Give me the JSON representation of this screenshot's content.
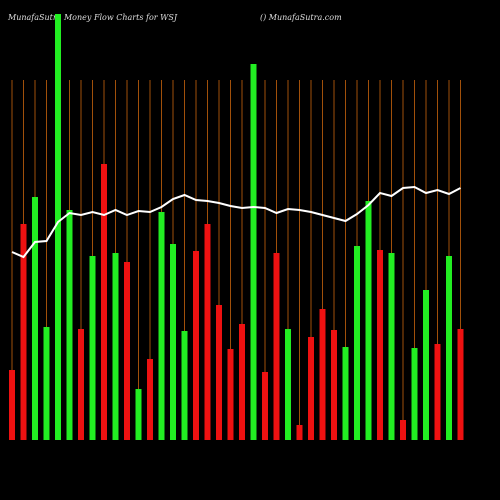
{
  "chart_data": {
    "type": "bar",
    "title": "MunafaSutra  Money Flow  Charts for WSJ",
    "subtitle": "() MunafaSutra.com",
    "series": [
      {
        "name": null,
        "values": [
          70,
          216,
          243,
          113,
          426,
          230,
          111,
          184,
          276,
          187,
          178,
          51,
          81,
          228,
          196,
          109,
          189,
          216,
          135,
          91,
          116,
          376,
          68,
          187,
          111,
          15,
          103,
          131,
          110,
          93,
          194,
          239,
          190,
          187,
          20,
          92,
          150,
          96,
          184,
          111
        ],
        "colors": [
          "red",
          "red",
          "green",
          "green",
          "green",
          "green",
          "red",
          "green",
          "red",
          "green",
          "red",
          "green",
          "red",
          "green",
          "green",
          "green",
          "red",
          "red",
          "red",
          "red",
          "red",
          "green",
          "red",
          "red",
          "green",
          "red",
          "red",
          "red",
          "red",
          "green",
          "green",
          "green",
          "red",
          "green",
          "red",
          "green",
          "green",
          "red",
          "green",
          "red"
        ]
      },
      {
        "name": null,
        "color": "#ffffff",
        "values": [
          188,
          183,
          198,
          199,
          218,
          227,
          225,
          228,
          225,
          230,
          225,
          229,
          228,
          233,
          241,
          245,
          240,
          239,
          237,
          234,
          232,
          233,
          232,
          227,
          231,
          230,
          228,
          225,
          222,
          219,
          226,
          235,
          247,
          244,
          252,
          253,
          247,
          250,
          246,
          252
        ]
      }
    ],
    "ylim": [
      0,
      440
    ],
    "grid": true,
    "grid_color": "#a0500a"
  }
}
